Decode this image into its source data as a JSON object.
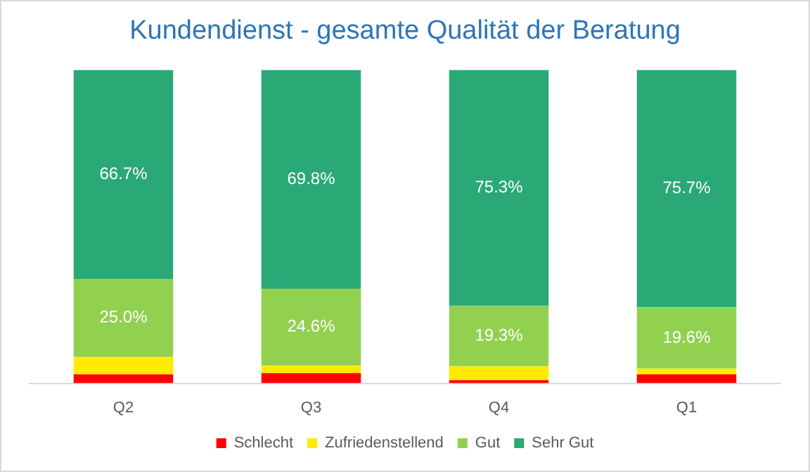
{
  "chart_data": {
    "type": "bar",
    "stacked": true,
    "title": "Kundendienst - gesamte Qualität der Beratung",
    "categories": [
      "Q2",
      "Q3",
      "Q4",
      "Q1"
    ],
    "ylim": [
      0,
      100
    ],
    "tick_labels": "x",
    "grid": false,
    "legend": "bottom",
    "series": [
      {
        "name": "Schlecht",
        "color": "#ff0000",
        "values": [
          2.8,
          3.2,
          1.0,
          2.8
        ],
        "value_labels": [
          null,
          null,
          null,
          null
        ]
      },
      {
        "name": "Zufriedenstellend",
        "color": "#ffeb00",
        "values": [
          5.5,
          2.4,
          4.4,
          1.9
        ],
        "value_labels": [
          null,
          null,
          null,
          null
        ]
      },
      {
        "name": "Gut",
        "color": "#92d050",
        "values": [
          25.0,
          24.6,
          19.3,
          19.6
        ],
        "value_labels": [
          "25.0%",
          "24.6%",
          "19.3%",
          "19.6%"
        ]
      },
      {
        "name": "Sehr Gut",
        "color": "#2aa876",
        "values": [
          66.7,
          69.8,
          75.3,
          75.7
        ],
        "value_labels": [
          "66.7%",
          "69.8%",
          "75.3%",
          "75.7%"
        ]
      }
    ]
  }
}
